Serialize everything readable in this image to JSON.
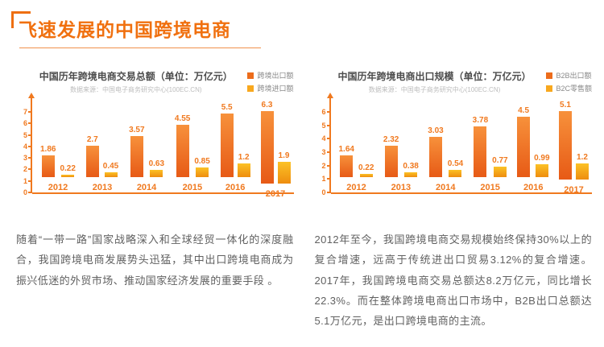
{
  "accent": "#F0791F",
  "title_color": "#F0700F",
  "header": {
    "title": "飞速发展的中国跨境电商"
  },
  "chart_data": [
    {
      "type": "bar",
      "title": "中国历年跨境电商交易总额（单位：万亿元）",
      "source": "数据来源：中国电子商务研究中心(100EC.CN)",
      "categories": [
        "2012",
        "2013",
        "2014",
        "2015",
        "2016",
        "2017"
      ],
      "series": [
        {
          "name": "跨境出口额",
          "values": [
            1.86,
            2.7,
            3.57,
            4.55,
            5.5,
            6.3
          ],
          "color_top": "#F7913B",
          "color_bottom": "#E75A16",
          "legend_color": "#EC6C1B"
        },
        {
          "name": "跨境进口额",
          "values": [
            0.22,
            0.45,
            0.63,
            0.85,
            1.2,
            1.9
          ],
          "color_top": "#FCC226",
          "color_bottom": "#EE8D0F",
          "legend_color": "#F8A81E"
        }
      ],
      "ylim": [
        0,
        7
      ],
      "yticks": [
        0,
        1,
        2,
        3,
        4,
        5,
        6,
        7
      ],
      "xlabel": "",
      "ylabel": "",
      "legend_position": "top-right",
      "grid": false
    },
    {
      "type": "bar",
      "title": "中国历年跨境电商出口规模（单位：万亿元）",
      "source": "数据来源：中国电子商务研究中心(100EC.CN)",
      "categories": [
        "2012",
        "2013",
        "2014",
        "2015",
        "2016",
        "2017"
      ],
      "series": [
        {
          "name": "B2B出口额",
          "values": [
            1.64,
            2.32,
            3.03,
            3.78,
            4.5,
            5.1
          ],
          "color_top": "#F7913B",
          "color_bottom": "#E75A16",
          "legend_color": "#EC6C1B"
        },
        {
          "name": "B2C零售额",
          "values": [
            0.22,
            0.38,
            0.54,
            0.77,
            0.99,
            1.2
          ],
          "color_top": "#FCC226",
          "color_bottom": "#EE8D0F",
          "legend_color": "#F8A81E"
        }
      ],
      "ylim": [
        0,
        6
      ],
      "yticks": [
        0,
        1,
        2,
        3,
        4,
        5,
        6
      ],
      "xlabel": "",
      "ylabel": "",
      "legend_position": "top-right",
      "grid": false
    }
  ],
  "paragraphs": [
    "随着“一带一路”国家战略深入和全球经贸一体化的深度融合，我国跨境电商发展势头迅猛，其中出口跨境电商成为振兴低迷的外贸市场、推动国家经济发展的重要手段 。",
    "2012年至今，我国跨境电商交易规模始终保持30%以上的复合增速，远高于传统进出口贸易3.12%的复合增速。2017年，我国跨境电商交易总额达8.2万亿元，同比增长22.3%。而在整体跨境电商出口市场中，B2B出口总额达5.1万亿元，是出口跨境电商的主流。"
  ]
}
